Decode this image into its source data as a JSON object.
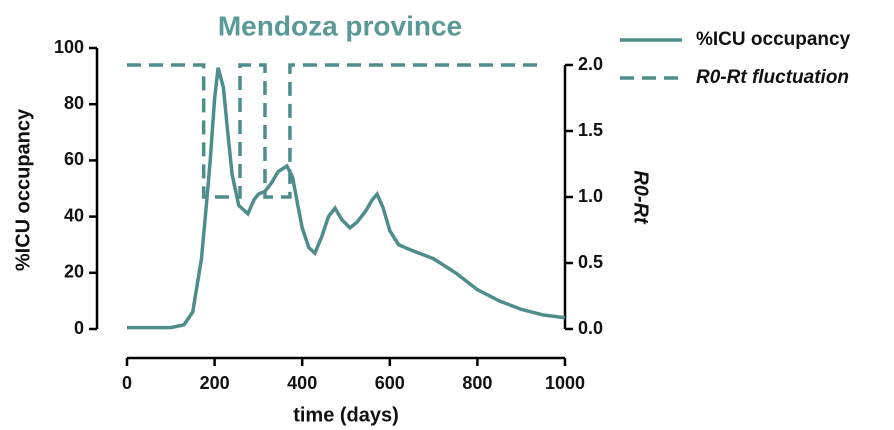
{
  "chart_data": {
    "type": "line",
    "title": "Mendoza province",
    "x_label": "time (days)",
    "y_label": "%ICU occupancy",
    "y2_label": "R0-Rt",
    "xlim": [
      0,
      1000
    ],
    "xticks": [
      0,
      200,
      400,
      600,
      800,
      1000
    ],
    "ylim": [
      0,
      100
    ],
    "yticks": [
      0,
      20,
      40,
      60,
      80,
      100
    ],
    "y2lim": [
      0,
      2
    ],
    "y2ticks": [
      {
        "value": 0,
        "label": "0.0"
      },
      0.5,
      {
        "value": 1,
        "label": "1.0"
      },
      1.5,
      {
        "value": 2,
        "label": "2.0"
      }
    ],
    "series": [
      {
        "name": "%ICU occupancy",
        "color": "#4e8d8b",
        "style": "solid",
        "x": [
          0,
          100,
          130,
          150,
          170,
          180,
          190,
          200,
          208,
          220,
          230,
          240,
          255,
          276,
          290,
          300,
          315,
          330,
          345,
          365,
          378,
          390,
          400,
          415,
          429,
          445,
          460,
          475,
          490,
          509,
          525,
          545,
          560,
          571,
          585,
          600,
          620,
          650,
          700,
          750,
          800,
          850,
          900,
          950,
          1000
        ],
        "values": [
          0.5,
          0.5,
          1.5,
          6,
          25,
          42,
          60,
          82,
          93,
          86,
          70,
          55,
          44,
          41,
          46,
          48,
          49,
          52,
          56,
          58,
          54,
          44,
          36,
          29,
          27,
          33,
          40,
          43,
          39,
          36,
          38,
          42,
          46,
          48,
          43,
          35,
          30,
          28,
          25,
          20,
          14,
          10,
          7,
          5,
          4
        ]
      },
      {
        "name": "R0-Rt fluctuation",
        "color": "#4e8d8b",
        "style": "dashed",
        "axis": "y2",
        "x": [
          0,
          175,
          175,
          258,
          258,
          315,
          315,
          372,
          372,
          943
        ],
        "values": [
          2,
          2,
          1,
          1,
          2,
          2,
          1,
          1,
          2,
          2
        ]
      }
    ]
  }
}
